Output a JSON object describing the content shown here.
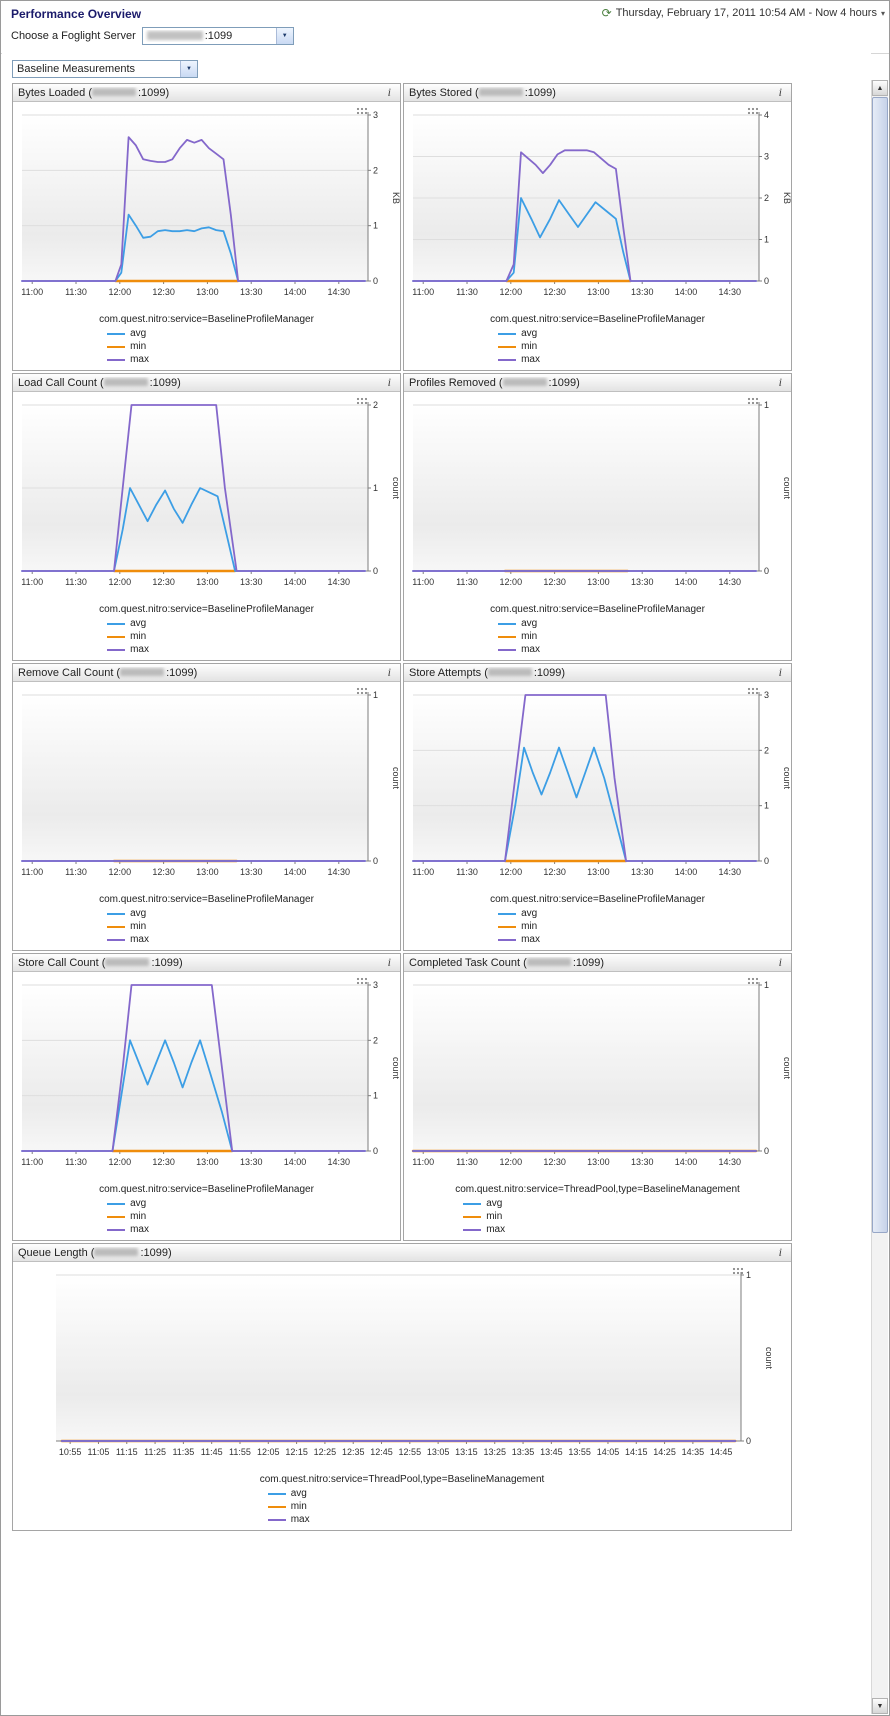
{
  "header": {
    "title": "Performance Overview",
    "time_label": "Thursday, February 17, 2011 10:54 AM - Now 4 hours"
  },
  "controls": {
    "server_label": "Choose a Foglight Server",
    "server_port_suffix": ":1099",
    "measurement_value": "Baseline Measurements"
  },
  "legend": {
    "avg": "avg",
    "min": "min",
    "max": "max"
  },
  "colors": {
    "avg": "#3c9ee5",
    "min": "#ef8d0c",
    "max": "#8468cb",
    "axis": "#7d7d7d",
    "grid": "#dedede"
  },
  "icons": {
    "info": "i",
    "clock": "⟳",
    "caret_down": "▾",
    "scroll_up": "▲",
    "scroll_down": "▼",
    "select_arrow": "▼"
  },
  "chart_data": [
    {
      "type": "line",
      "span": 1,
      "title_prefix": "Bytes Loaded (",
      "title_suffix": ":1099)",
      "server_redacted": true,
      "ylabel": "KB",
      "ylim": [
        0,
        3
      ],
      "yticks": [
        0,
        1,
        2,
        3
      ],
      "x_domain": [
        653,
        890
      ],
      "x_tick_minutes": [
        660,
        690,
        720,
        750,
        780,
        810,
        840,
        870
      ],
      "x_tick_labels": [
        "11:00",
        "11:30",
        "12:00",
        "12:30",
        "13:00",
        "13:30",
        "14:00",
        "14:30"
      ],
      "source": "com.quest.nitro:service=BaselineProfileManager",
      "series": {
        "min": [
          [
            717,
            0
          ],
          [
            801,
            0
          ]
        ],
        "avg": [
          [
            653,
            0
          ],
          [
            717,
            0
          ],
          [
            721,
            0.15
          ],
          [
            726,
            1.2
          ],
          [
            731,
            1.0
          ],
          [
            736,
            0.78
          ],
          [
            741,
            0.8
          ],
          [
            746,
            0.9
          ],
          [
            751,
            0.92
          ],
          [
            756,
            0.9
          ],
          [
            761,
            0.9
          ],
          [
            766,
            0.92
          ],
          [
            771,
            0.9
          ],
          [
            776,
            0.95
          ],
          [
            781,
            0.97
          ],
          [
            786,
            0.92
          ],
          [
            791,
            0.9
          ],
          [
            796,
            0.5
          ],
          [
            801,
            0
          ],
          [
            888,
            0
          ]
        ],
        "max": [
          [
            653,
            0
          ],
          [
            717,
            0
          ],
          [
            721,
            0.3
          ],
          [
            726,
            2.6
          ],
          [
            731,
            2.45
          ],
          [
            736,
            2.2
          ],
          [
            741,
            2.17
          ],
          [
            746,
            2.15
          ],
          [
            751,
            2.15
          ],
          [
            756,
            2.2
          ],
          [
            761,
            2.4
          ],
          [
            766,
            2.55
          ],
          [
            771,
            2.5
          ],
          [
            776,
            2.55
          ],
          [
            781,
            2.4
          ],
          [
            786,
            2.3
          ],
          [
            791,
            2.2
          ],
          [
            796,
            1.2
          ],
          [
            801,
            0
          ],
          [
            888,
            0
          ]
        ]
      }
    },
    {
      "type": "line",
      "span": 1,
      "title_prefix": "Bytes Stored (",
      "title_suffix": ":1099)",
      "server_redacted": true,
      "ylabel": "KB",
      "ylim": [
        0,
        4
      ],
      "yticks": [
        0,
        1,
        2,
        3,
        4
      ],
      "x_domain": [
        653,
        890
      ],
      "x_tick_minutes": [
        660,
        690,
        720,
        750,
        780,
        810,
        840,
        870
      ],
      "x_tick_labels": [
        "11:00",
        "11:30",
        "12:00",
        "12:30",
        "13:00",
        "13:30",
        "14:00",
        "14:30"
      ],
      "source": "com.quest.nitro:service=BaselineProfileManager",
      "series": {
        "min": [
          [
            717,
            0
          ],
          [
            802,
            0
          ]
        ],
        "avg": [
          [
            653,
            0
          ],
          [
            717,
            0
          ],
          [
            722,
            0.2
          ],
          [
            727,
            2.0
          ],
          [
            734,
            1.5
          ],
          [
            740,
            1.05
          ],
          [
            747,
            1.5
          ],
          [
            753,
            1.95
          ],
          [
            760,
            1.6
          ],
          [
            766,
            1.3
          ],
          [
            772,
            1.6
          ],
          [
            778,
            1.9
          ],
          [
            785,
            1.7
          ],
          [
            792,
            1.5
          ],
          [
            797,
            0.7
          ],
          [
            802,
            0
          ],
          [
            888,
            0
          ]
        ],
        "max": [
          [
            653,
            0
          ],
          [
            717,
            0
          ],
          [
            722,
            0.4
          ],
          [
            727,
            3.1
          ],
          [
            732,
            2.95
          ],
          [
            737,
            2.8
          ],
          [
            742,
            2.6
          ],
          [
            747,
            2.8
          ],
          [
            752,
            3.05
          ],
          [
            757,
            3.15
          ],
          [
            762,
            3.15
          ],
          [
            767,
            3.15
          ],
          [
            772,
            3.15
          ],
          [
            777,
            3.1
          ],
          [
            782,
            2.95
          ],
          [
            787,
            2.8
          ],
          [
            792,
            2.7
          ],
          [
            797,
            1.3
          ],
          [
            802,
            0
          ],
          [
            888,
            0
          ]
        ]
      }
    },
    {
      "type": "line",
      "span": 1,
      "title_prefix": "Load Call Count (",
      "title_suffix": ":1099)",
      "server_redacted": true,
      "ylabel": "count",
      "ylim": [
        0,
        2
      ],
      "yticks": [
        0,
        1,
        2
      ],
      "x_domain": [
        653,
        890
      ],
      "x_tick_minutes": [
        660,
        690,
        720,
        750,
        780,
        810,
        840,
        870
      ],
      "x_tick_labels": [
        "11:00",
        "11:30",
        "12:00",
        "12:30",
        "13:00",
        "13:30",
        "14:00",
        "14:30"
      ],
      "source": "com.quest.nitro:service=BaselineProfileManager",
      "series": {
        "min": [
          [
            716,
            0
          ],
          [
            799,
            0
          ]
        ],
        "avg": [
          [
            653,
            0
          ],
          [
            716,
            0
          ],
          [
            722,
            0.5
          ],
          [
            727,
            1.0
          ],
          [
            733,
            0.8
          ],
          [
            739,
            0.6
          ],
          [
            745,
            0.8
          ],
          [
            751,
            0.97
          ],
          [
            757,
            0.75
          ],
          [
            763,
            0.58
          ],
          [
            769,
            0.8
          ],
          [
            775,
            1.0
          ],
          [
            781,
            0.95
          ],
          [
            787,
            0.9
          ],
          [
            793,
            0.45
          ],
          [
            799,
            0
          ],
          [
            888,
            0
          ]
        ],
        "max": [
          [
            653,
            0
          ],
          [
            716,
            0
          ],
          [
            722,
            1.0
          ],
          [
            728,
            2
          ],
          [
            786,
            2
          ],
          [
            792,
            1.0
          ],
          [
            800,
            0
          ],
          [
            888,
            0
          ]
        ]
      }
    },
    {
      "type": "line",
      "span": 1,
      "title_prefix": "Profiles Removed (",
      "title_suffix": ":1099)",
      "server_redacted": true,
      "ylabel": "count",
      "ylim": [
        0,
        1
      ],
      "yticks": [
        0,
        1
      ],
      "x_domain": [
        653,
        890
      ],
      "x_tick_minutes": [
        660,
        690,
        720,
        750,
        780,
        810,
        840,
        870
      ],
      "x_tick_labels": [
        "11:00",
        "11:30",
        "12:00",
        "12:30",
        "13:00",
        "13:30",
        "14:00",
        "14:30"
      ],
      "source": "com.quest.nitro:service=BaselineProfileManager",
      "series": {
        "min": [
          [
            716,
            0
          ],
          [
            800,
            0
          ]
        ],
        "avg": [
          [
            653,
            0
          ],
          [
            888,
            0
          ]
        ],
        "max": [
          [
            653,
            0
          ],
          [
            888,
            0
          ]
        ]
      }
    },
    {
      "type": "line",
      "span": 1,
      "title_prefix": "Remove Call Count (",
      "title_suffix": ":1099)",
      "server_redacted": true,
      "ylabel": "count",
      "ylim": [
        0,
        1
      ],
      "yticks": [
        0,
        1
      ],
      "x_domain": [
        653,
        890
      ],
      "x_tick_minutes": [
        660,
        690,
        720,
        750,
        780,
        810,
        840,
        870
      ],
      "x_tick_labels": [
        "11:00",
        "11:30",
        "12:00",
        "12:30",
        "13:00",
        "13:30",
        "14:00",
        "14:30"
      ],
      "source": "com.quest.nitro:service=BaselineProfileManager",
      "series": {
        "min": [
          [
            716,
            0
          ],
          [
            800,
            0
          ]
        ],
        "avg": [
          [
            653,
            0
          ],
          [
            888,
            0
          ]
        ],
        "max": [
          [
            653,
            0
          ],
          [
            888,
            0
          ]
        ]
      }
    },
    {
      "type": "line",
      "span": 1,
      "title_prefix": "Store Attempts (",
      "title_suffix": ":1099)",
      "server_redacted": true,
      "ylabel": "count",
      "ylim": [
        0,
        3
      ],
      "yticks": [
        0,
        1,
        2,
        3
      ],
      "x_domain": [
        653,
        890
      ],
      "x_tick_minutes": [
        660,
        690,
        720,
        750,
        780,
        810,
        840,
        870
      ],
      "x_tick_labels": [
        "11:00",
        "11:30",
        "12:00",
        "12:30",
        "13:00",
        "13:30",
        "14:00",
        "14:30"
      ],
      "source": "com.quest.nitro:service=BaselineProfileManager",
      "series": {
        "min": [
          [
            716,
            0
          ],
          [
            799,
            0
          ]
        ],
        "avg": [
          [
            653,
            0
          ],
          [
            716,
            0
          ],
          [
            723,
            1.0
          ],
          [
            729,
            2.05
          ],
          [
            735,
            1.6
          ],
          [
            741,
            1.2
          ],
          [
            747,
            1.6
          ],
          [
            753,
            2.05
          ],
          [
            759,
            1.6
          ],
          [
            765,
            1.15
          ],
          [
            771,
            1.6
          ],
          [
            777,
            2.05
          ],
          [
            784,
            1.5
          ],
          [
            791,
            0.8
          ],
          [
            799,
            0
          ],
          [
            888,
            0
          ]
        ],
        "max": [
          [
            653,
            0
          ],
          [
            716,
            0
          ],
          [
            723,
            1.5
          ],
          [
            730,
            3
          ],
          [
            785,
            3
          ],
          [
            791,
            1.5
          ],
          [
            799,
            0
          ],
          [
            888,
            0
          ]
        ]
      }
    },
    {
      "type": "line",
      "span": 1,
      "title_prefix": "Store Call Count (",
      "title_suffix": ":1099)",
      "server_redacted": true,
      "ylabel": "count",
      "ylim": [
        0,
        3
      ],
      "yticks": [
        0,
        1,
        2,
        3
      ],
      "x_domain": [
        653,
        890
      ],
      "x_tick_minutes": [
        660,
        690,
        720,
        750,
        780,
        810,
        840,
        870
      ],
      "x_tick_labels": [
        "11:00",
        "11:30",
        "12:00",
        "12:30",
        "13:00",
        "13:30",
        "14:00",
        "14:30"
      ],
      "source": "com.quest.nitro:service=BaselineProfileManager",
      "series": {
        "min": [
          [
            715,
            0
          ],
          [
            797,
            0
          ]
        ],
        "avg": [
          [
            653,
            0
          ],
          [
            715,
            0
          ],
          [
            721,
            1.0
          ],
          [
            727,
            2.0
          ],
          [
            733,
            1.6
          ],
          [
            739,
            1.2
          ],
          [
            745,
            1.6
          ],
          [
            751,
            2.0
          ],
          [
            757,
            1.6
          ],
          [
            763,
            1.15
          ],
          [
            769,
            1.6
          ],
          [
            775,
            2.0
          ],
          [
            782,
            1.4
          ],
          [
            790,
            0.7
          ],
          [
            797,
            0
          ],
          [
            888,
            0
          ]
        ],
        "max": [
          [
            653,
            0
          ],
          [
            715,
            0
          ],
          [
            722,
            1.5
          ],
          [
            728,
            3
          ],
          [
            783,
            3
          ],
          [
            790,
            1.5
          ],
          [
            797,
            0
          ],
          [
            888,
            0
          ]
        ]
      }
    },
    {
      "type": "line",
      "span": 1,
      "title_prefix": "Completed Task Count (",
      "title_suffix": ":1099)",
      "server_redacted": true,
      "ylabel": "count",
      "ylim": [
        0,
        1
      ],
      "yticks": [
        0,
        1
      ],
      "x_domain": [
        653,
        890
      ],
      "x_tick_minutes": [
        660,
        690,
        720,
        750,
        780,
        810,
        840,
        870
      ],
      "x_tick_labels": [
        "11:00",
        "11:30",
        "12:00",
        "12:30",
        "13:00",
        "13:30",
        "14:00",
        "14:30"
      ],
      "source": "com.quest.nitro:service=ThreadPool,type=BaselineManagement",
      "series": {
        "min": [
          [
            653,
            0
          ],
          [
            888,
            0
          ]
        ],
        "avg": [
          [
            653,
            0
          ],
          [
            888,
            0
          ]
        ],
        "max": [
          [
            653,
            0
          ],
          [
            888,
            0
          ]
        ]
      }
    },
    {
      "type": "line",
      "span": 2,
      "title_prefix": "Queue Length (",
      "title_suffix": ":1099)",
      "server_redacted": true,
      "ylabel": "count",
      "ylim": [
        0,
        1
      ],
      "yticks": [
        0,
        1
      ],
      "x_domain": [
        650,
        892
      ],
      "x_tick_minutes": [
        655,
        665,
        675,
        685,
        695,
        705,
        715,
        725,
        735,
        745,
        755,
        765,
        775,
        785,
        795,
        805,
        815,
        825,
        835,
        845,
        855,
        865,
        875,
        885
      ],
      "x_tick_labels": [
        "10:55",
        "11:05",
        "11:15",
        "11:25",
        "11:35",
        "11:45",
        "11:55",
        "12:05",
        "12:15",
        "12:25",
        "12:35",
        "12:45",
        "12:55",
        "13:05",
        "13:15",
        "13:25",
        "13:35",
        "13:45",
        "13:55",
        "14:05",
        "14:15",
        "14:25",
        "14:35",
        "14:45"
      ],
      "source": "com.quest.nitro:service=ThreadPool,type=BaselineManagement",
      "series": {
        "min": [
          [
            652,
            0
          ],
          [
            890,
            0
          ]
        ],
        "avg": [
          [
            652,
            0
          ],
          [
            890,
            0
          ]
        ],
        "max": [
          [
            652,
            0
          ],
          [
            890,
            0
          ]
        ]
      }
    }
  ]
}
